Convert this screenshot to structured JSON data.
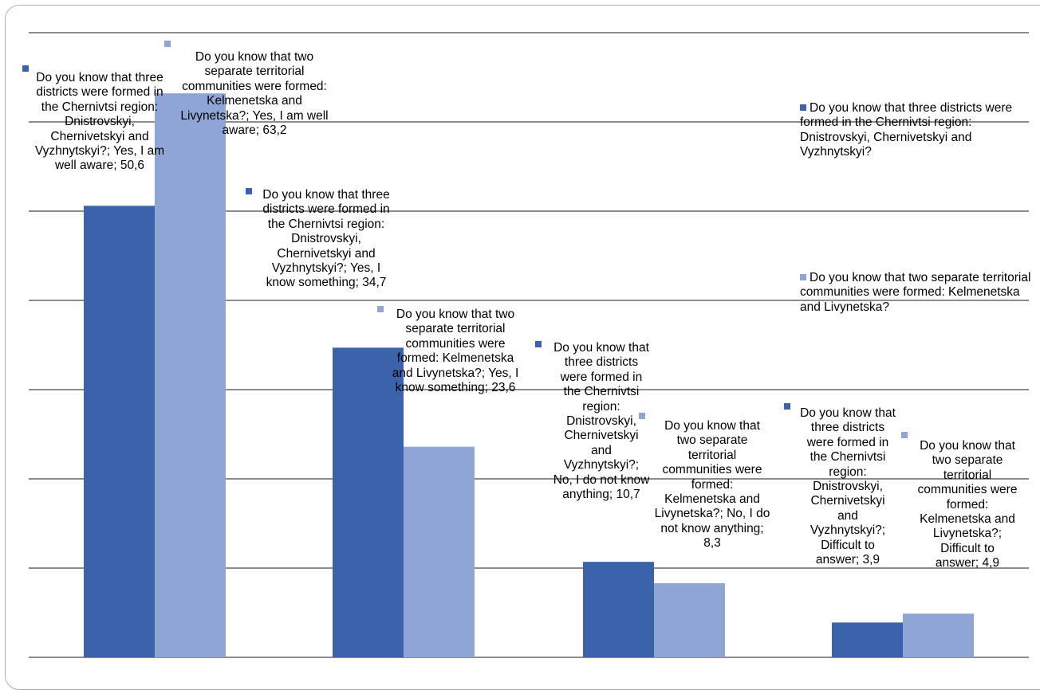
{
  "chart_data": {
    "type": "bar",
    "title": "",
    "xlabel": "",
    "ylabel": "",
    "ylim": [
      0,
      70
    ],
    "grid": true,
    "legend_position": "right",
    "categories": [
      "Yes, I am well aware",
      "Yes, I know something",
      "No, I do not know anything",
      "Difficult to answer"
    ],
    "series": [
      {
        "name": "Do you know that three districts were formed in the Chernivtsi region: Dnistrovskyi, Chernivetskyi and Vyzhnytskyi?",
        "color": "#3a63ac",
        "values": [
          50.6,
          34.7,
          10.7,
          3.9
        ],
        "labels": [
          "Do you know that three districts were formed in the Chernivtsi region: Dnistrovskyi, Chernivetskyi and Vyzhnytskyi?; Yes, I am well aware; 50,6",
          "Do you know that three districts were formed in the Chernivtsi region: Dnistrovskyi, Chernivetskyi and Vyzhnytskyi?; Yes, I know something; 34,7",
          "Do you know that three districts were formed in the Chernivtsi region: Dnistrovskyi, Chernivetskyi and Vyzhnytskyi?; No, I do not know anything; 10,7",
          "Do you know that three districts were formed in the Chernivtsi region: Dnistrovskyi, Chernivetskyi and Vyzhnytskyi?; Difficult to answer; 3,9"
        ]
      },
      {
        "name": "Do you know that two separate territorial communities were formed: Kelmenetska and Livynetska?",
        "color": "#8fa5d6",
        "values": [
          63.2,
          23.6,
          8.3,
          4.9
        ],
        "labels": [
          "Do you know that two separate territorial communities were formed: Kelmenetska and Livynetska?; Yes, I am well aware; 63,2",
          "Do you know that two separate territorial communities were formed: Kelmenetska and Livynetska?; Yes, I know something; 23,6",
          "Do you know that two separate territorial communities were formed: Kelmenetska and Livynetska?; No, I do not know anything; 8,3",
          "Do you know that two separate territorial communities were formed: Kelmenetska and Livynetska?; Difficult to answer; 4,9"
        ]
      }
    ]
  }
}
